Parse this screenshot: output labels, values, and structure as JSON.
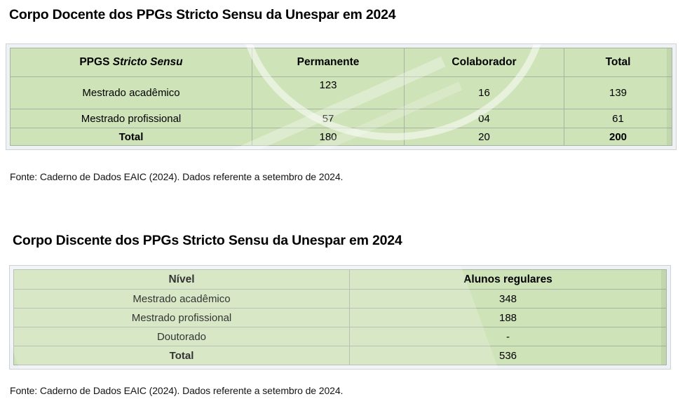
{
  "docente": {
    "title": "Corpo Docente dos PPGs Stricto Sensu da Unespar em 2024",
    "header": {
      "col1_plain": "PPGS ",
      "col1_italic": "Stricto Sensu",
      "col2": "Permanente",
      "col3": "Colaborador",
      "col4": "Total"
    },
    "rows": [
      {
        "nivel": "Mestrado acadêmico",
        "permanente": "123",
        "colaborador": "16",
        "total": "139"
      },
      {
        "nivel": "Mestrado profissional",
        "permanente": "57",
        "colaborador": "04",
        "total": "61"
      },
      {
        "nivel": "Total",
        "permanente": "180",
        "colaborador": "20",
        "total": "200"
      }
    ],
    "source": "Fonte: Caderno de Dados EAIC (2024). Dados referente a setembro de 2024."
  },
  "discente": {
    "title": "Corpo Discente dos PPGs Stricto Sensu da Unespar em 2024",
    "header": {
      "col1": "Nível",
      "col2": "Alunos regulares"
    },
    "rows": [
      {
        "nivel": "Mestrado acadêmico",
        "alunos": "348"
      },
      {
        "nivel": "Mestrado profissional",
        "alunos": "188"
      },
      {
        "nivel": "Doutorado",
        "alunos": "-"
      },
      {
        "nivel": "Total",
        "alunos": "536"
      }
    ],
    "source": "Fonte: Caderno de Dados EAIC (2024). Dados referente a setembro de 2024."
  },
  "colors": {
    "cell_green": "#cfe3b9",
    "grid_line": "#a9b3a5",
    "frame_background": "#eff2f5",
    "frame_border": "#ced3d8",
    "text": "#000000"
  }
}
